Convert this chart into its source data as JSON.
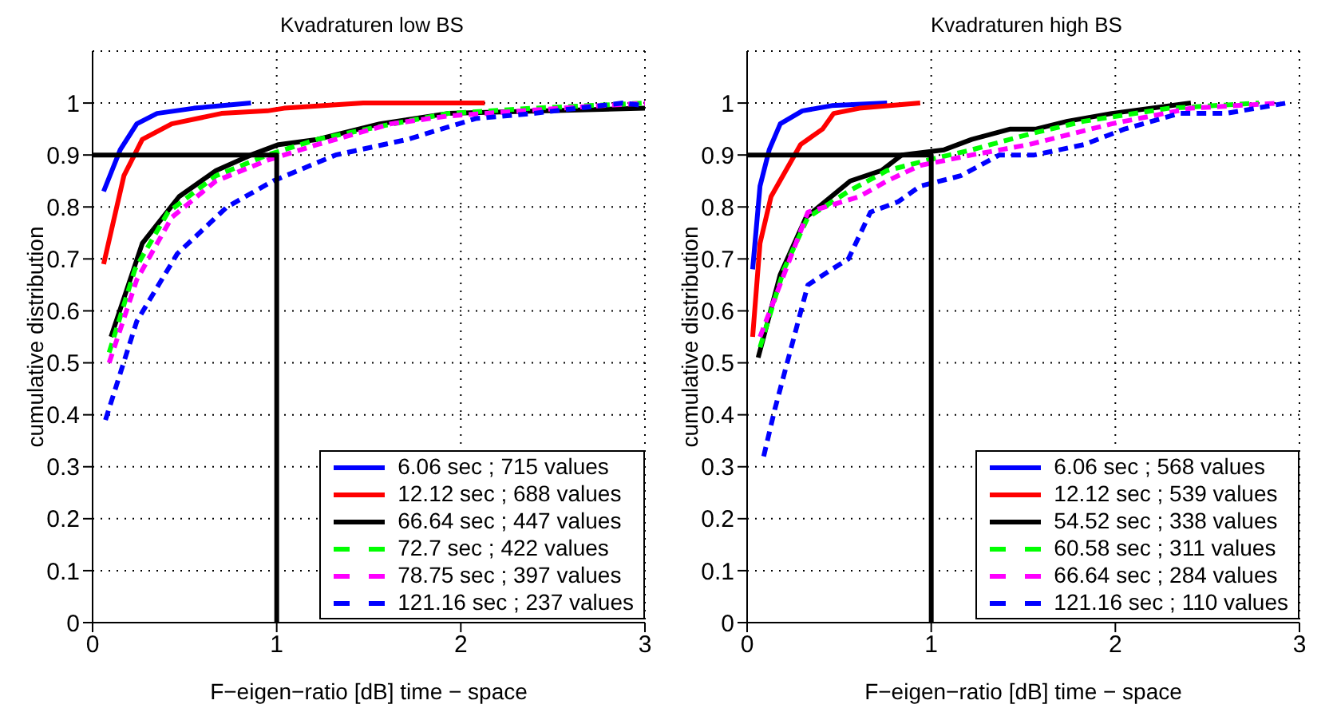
{
  "chart_data": [
    {
      "type": "line",
      "title": "Kvadraturen low BS",
      "xlabel": "F−eigen−ratio [dB]  time − space",
      "ylabel": "cumulative distribution",
      "xlim": [
        0,
        3
      ],
      "xticks": [
        0,
        1,
        2,
        3
      ],
      "ylim": [
        0,
        1.1
      ],
      "yticks": [
        0,
        0.1,
        0.2,
        0.3,
        0.4,
        0.5,
        0.6,
        0.7,
        0.8,
        0.9,
        1
      ],
      "grid": true,
      "legend": "bottom right",
      "marker": "none",
      "series": [
        {
          "name": "6.06 sec ; 715 values",
          "color": "#0000ff",
          "line_style": "solid",
          "x": [
            0.06,
            0.15,
            0.24,
            0.35,
            0.55,
            0.86
          ],
          "values": [
            0.83,
            0.91,
            0.96,
            0.98,
            0.99,
            1.0
          ]
        },
        {
          "name": "12.12 sec ; 688 values",
          "color": "#ff0000",
          "line_style": "solid",
          "x": [
            0.06,
            0.17,
            0.27,
            0.43,
            0.7,
            0.95,
            1.04,
            1.47,
            2.13
          ],
          "values": [
            0.69,
            0.86,
            0.93,
            0.96,
            0.98,
            0.985,
            0.99,
            1.0,
            1.0
          ]
        },
        {
          "name": "66.64 sec ; 447 values",
          "color": "#000000",
          "line_style": "solid",
          "x": [
            0.1,
            0.27,
            0.47,
            0.67,
            0.86,
            1.01,
            1.22,
            1.56,
            1.93,
            3.0
          ],
          "values": [
            0.55,
            0.73,
            0.82,
            0.87,
            0.9,
            0.92,
            0.93,
            0.96,
            0.98,
            0.99
          ]
        },
        {
          "name": "72.7 sec ; 422 values",
          "color": "#00ff00",
          "line_style": "dashed",
          "x": [
            0.09,
            0.23,
            0.41,
            0.67,
            0.95,
            1.22,
            1.56,
            1.93,
            2.39,
            3.0
          ],
          "values": [
            0.52,
            0.68,
            0.79,
            0.86,
            0.9,
            0.93,
            0.955,
            0.98,
            0.99,
            1.0
          ]
        },
        {
          "name": "78.75 sec ; 397 values",
          "color": "#ff00ff",
          "line_style": "dashed",
          "x": [
            0.09,
            0.24,
            0.43,
            0.67,
            0.95,
            1.22,
            1.62,
            1.93,
            2.54,
            3.0
          ],
          "values": [
            0.5,
            0.66,
            0.78,
            0.85,
            0.89,
            0.92,
            0.96,
            0.975,
            0.99,
            1.0
          ]
        },
        {
          "name": "121.16 sec ; 237 values",
          "color": "#0000ff",
          "line_style": "dashed",
          "x": [
            0.07,
            0.24,
            0.46,
            0.73,
            0.98,
            1.32,
            1.71,
            2.08,
            2.39,
            2.88,
            3.0
          ],
          "values": [
            0.39,
            0.58,
            0.71,
            0.8,
            0.85,
            0.9,
            0.93,
            0.97,
            0.98,
            1.0,
            0.995
          ]
        },
        {
          "color": "#000000",
          "line_style": "solid",
          "x": [
            0,
            1,
            1
          ],
          "values": [
            0.9,
            0.9,
            0
          ]
        }
      ]
    },
    {
      "type": "line",
      "title": "Kvadraturen high BS",
      "xlabel": "F−eigen−ratio [dB]  time − space",
      "ylabel": "cumulative distribution",
      "xlim": [
        0,
        3
      ],
      "xticks": [
        0,
        1,
        2,
        3
      ],
      "ylim": [
        0,
        1.1
      ],
      "yticks": [
        0,
        0.1,
        0.2,
        0.3,
        0.4,
        0.5,
        0.6,
        0.7,
        0.8,
        0.9,
        1
      ],
      "grid": true,
      "legend": "bottom right",
      "marker": "none",
      "series": [
        {
          "name": "6.06 sec ; 568 values",
          "color": "#0000ff",
          "line_style": "solid",
          "x": [
            0.03,
            0.07,
            0.12,
            0.18,
            0.3,
            0.46,
            0.76
          ],
          "values": [
            0.68,
            0.84,
            0.91,
            0.96,
            0.985,
            0.995,
            1.0
          ]
        },
        {
          "name": "12.12 sec ; 539 values",
          "color": "#ff0000",
          "line_style": "solid",
          "x": [
            0.03,
            0.07,
            0.13,
            0.21,
            0.29,
            0.41,
            0.47,
            0.61,
            0.94
          ],
          "values": [
            0.55,
            0.73,
            0.82,
            0.87,
            0.92,
            0.95,
            0.98,
            0.99,
            1.0
          ]
        },
        {
          "name": "54.52 sec ; 338 values",
          "color": "#000000",
          "line_style": "solid",
          "x": [
            0.06,
            0.18,
            0.32,
            0.56,
            0.73,
            0.84,
            1.07,
            1.22,
            1.43,
            1.57,
            1.74,
            1.98,
            2.41
          ],
          "values": [
            0.51,
            0.67,
            0.78,
            0.85,
            0.87,
            0.9,
            0.91,
            0.93,
            0.95,
            0.95,
            0.965,
            0.98,
            1.0
          ]
        },
        {
          "name": "60.58 sec ; 311 values",
          "color": "#00ff00",
          "line_style": "dashed",
          "x": [
            0.07,
            0.2,
            0.33,
            0.55,
            0.76,
            0.98,
            1.22,
            1.53,
            1.83,
            2.29,
            2.78
          ],
          "values": [
            0.53,
            0.68,
            0.78,
            0.83,
            0.87,
            0.89,
            0.91,
            0.94,
            0.965,
            0.99,
            1.0
          ]
        },
        {
          "name": "66.64 sec ; 284 values",
          "color": "#ff00ff",
          "line_style": "dashed",
          "x": [
            0.07,
            0.2,
            0.33,
            0.61,
            0.76,
            0.94,
            1.22,
            1.53,
            1.98,
            2.41,
            2.9
          ],
          "values": [
            0.55,
            0.67,
            0.79,
            0.82,
            0.85,
            0.88,
            0.9,
            0.92,
            0.96,
            0.99,
            1.0
          ]
        },
        {
          "name": "121.16 sec ; 110 values",
          "color": "#0000ff",
          "line_style": "dashed",
          "x": [
            0.09,
            0.15,
            0.24,
            0.33,
            0.46,
            0.55,
            0.67,
            0.82,
            0.94,
            1.16,
            1.37,
            1.56,
            1.83,
            2.05,
            2.35,
            2.6,
            2.93
          ],
          "values": [
            0.32,
            0.41,
            0.53,
            0.65,
            0.68,
            0.7,
            0.79,
            0.81,
            0.84,
            0.86,
            0.9,
            0.9,
            0.92,
            0.95,
            0.98,
            0.98,
            1.0
          ]
        },
        {
          "color": "#000000",
          "line_style": "solid",
          "x": [
            0,
            1,
            1
          ],
          "values": [
            0.9,
            0.9,
            0
          ]
        }
      ]
    }
  ]
}
